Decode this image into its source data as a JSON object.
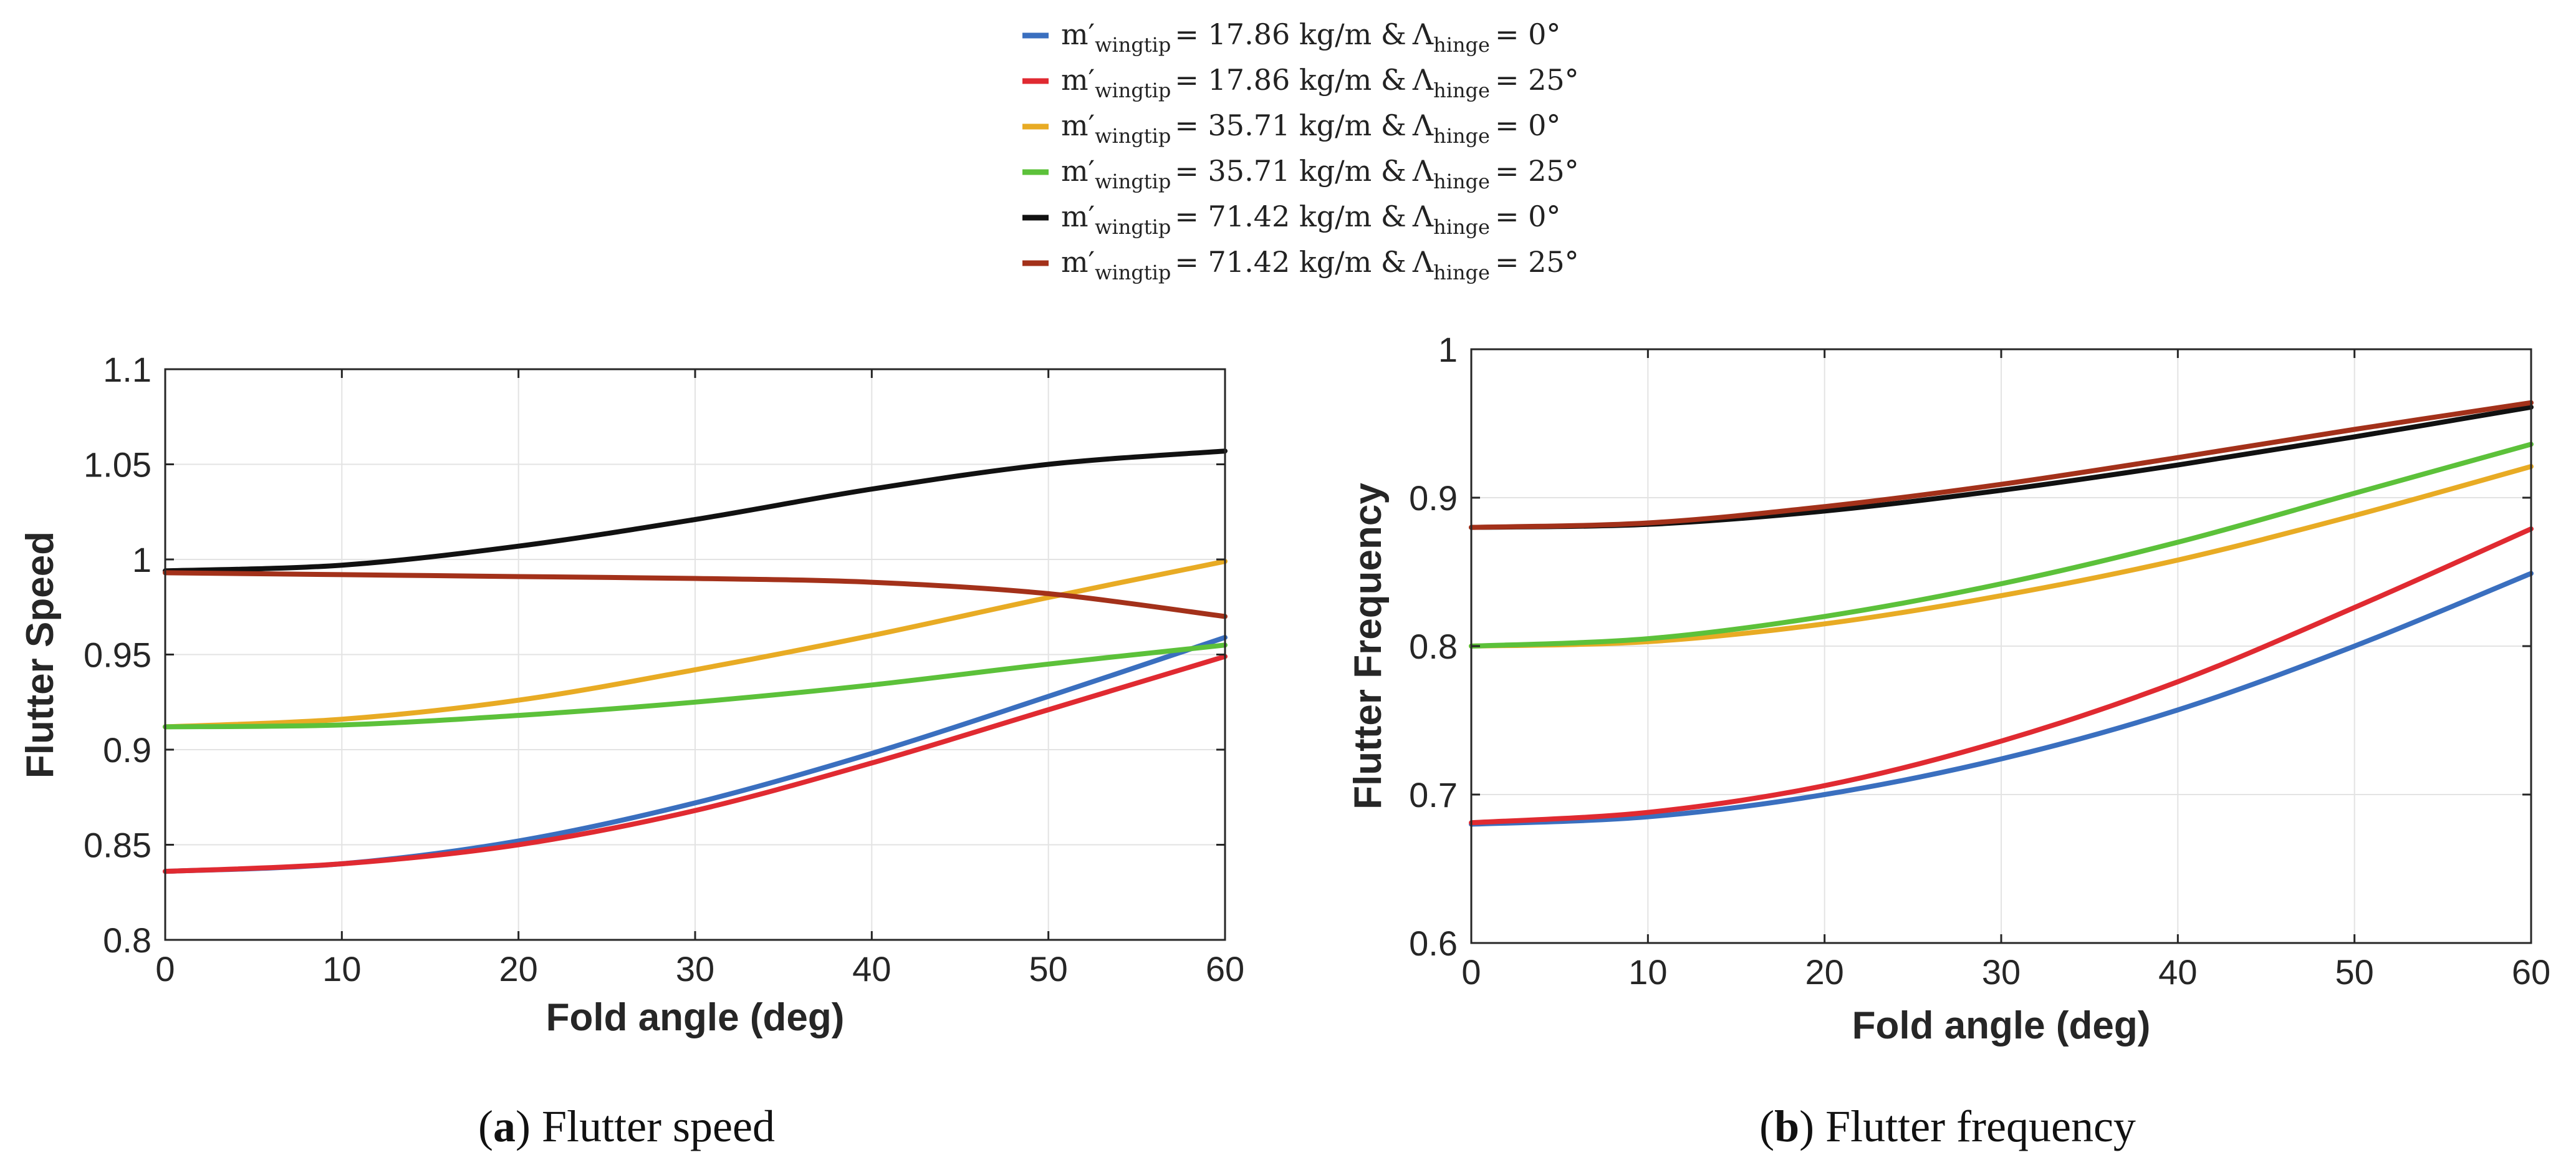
{
  "legend": {
    "entries": [
      {
        "m_symbol": "m′",
        "m_sub": "wingtip",
        "mass": "= 17.86 kg/m &",
        "lambda_symbol": "Λ",
        "lambda_sub": "hinge",
        "angle": "= 0°",
        "color": "#3a6fbf"
      },
      {
        "m_symbol": "m′",
        "m_sub": "wingtip",
        "mass": "= 17.86 kg/m &",
        "lambda_symbol": "Λ",
        "lambda_sub": "hinge",
        "angle": "= 25°",
        "color": "#e02a31"
      },
      {
        "m_symbol": "m′",
        "m_sub": "wingtip",
        "mass": "= 35.71 kg/m &",
        "lambda_symbol": "Λ",
        "lambda_sub": "hinge",
        "angle": "= 0°",
        "color": "#e8ab24"
      },
      {
        "m_symbol": "m′",
        "m_sub": "wingtip",
        "mass": "= 35.71 kg/m &",
        "lambda_symbol": "Λ",
        "lambda_sub": "hinge",
        "angle": "= 25°",
        "color": "#5cc13a"
      },
      {
        "m_symbol": "m′",
        "m_sub": "wingtip",
        "mass": "= 71.42 kg/m &",
        "lambda_symbol": "Λ",
        "lambda_sub": "hinge",
        "angle": "= 0°",
        "color": "#111111"
      },
      {
        "m_symbol": "m′",
        "m_sub": "wingtip",
        "mass": "= 71.42 kg/m &",
        "lambda_symbol": "Λ",
        "lambda_sub": "hinge",
        "angle": "= 25°",
        "color": "#a3311a"
      }
    ]
  },
  "captions": {
    "a": {
      "letter": "a",
      "text": " Flutter speed",
      "open": "(",
      "close": ")"
    },
    "b": {
      "letter": "b",
      "text": " Flutter frequency",
      "open": "(",
      "close": ")"
    }
  },
  "chart_data": [
    {
      "type": "line",
      "id": "a",
      "xlabel": "Fold angle (deg)",
      "ylabel": "Flutter Speed",
      "xlim": [
        0,
        60
      ],
      "ylim": [
        0.8,
        1.1
      ],
      "xticks": [
        0,
        10,
        20,
        30,
        40,
        50,
        60
      ],
      "xtick_labels": [
        "0",
        "10",
        "20",
        "30",
        "40",
        "50",
        "60"
      ],
      "yticks": [
        0.8,
        0.85,
        0.9,
        0.95,
        1.0,
        1.05,
        1.1
      ],
      "ytick_labels": [
        "0.8",
        "0.85",
        "0.9",
        "0.95",
        "1",
        "1.05",
        "1.1"
      ],
      "grid": true,
      "x": [
        0,
        10,
        20,
        30,
        40,
        50,
        60
      ],
      "series": [
        {
          "name": "17.86 kg/m, 0°",
          "values": [
            0.836,
            0.84,
            0.852,
            0.872,
            0.898,
            0.928,
            0.959
          ],
          "color": "#3a6fbf"
        },
        {
          "name": "17.86 kg/m, 25°",
          "values": [
            0.836,
            0.84,
            0.85,
            0.868,
            0.893,
            0.921,
            0.949
          ],
          "color": "#e02a31"
        },
        {
          "name": "35.71 kg/m, 0°",
          "values": [
            0.912,
            0.916,
            0.926,
            0.942,
            0.96,
            0.98,
            0.999
          ],
          "color": "#e8ab24"
        },
        {
          "name": "35.71 kg/m, 25°",
          "values": [
            0.912,
            0.913,
            0.918,
            0.925,
            0.934,
            0.945,
            0.955
          ],
          "color": "#5cc13a"
        },
        {
          "name": "71.42 kg/m, 0°",
          "values": [
            0.994,
            0.997,
            1.007,
            1.021,
            1.037,
            1.05,
            1.057
          ],
          "color": "#111111"
        },
        {
          "name": "71.42 kg/m, 25°",
          "values": [
            0.993,
            0.992,
            0.991,
            0.99,
            0.988,
            0.982,
            0.97
          ],
          "color": "#a3311a"
        }
      ]
    },
    {
      "type": "line",
      "id": "b",
      "xlabel": "Fold angle (deg)",
      "ylabel": "Flutter Frequency",
      "xlim": [
        0,
        60
      ],
      "ylim": [
        0.6,
        1.0
      ],
      "xticks": [
        0,
        10,
        20,
        30,
        40,
        50,
        60
      ],
      "xtick_labels": [
        "0",
        "10",
        "20",
        "30",
        "40",
        "50",
        "60"
      ],
      "yticks": [
        0.6,
        0.7,
        0.8,
        0.9,
        1.0
      ],
      "ytick_labels": [
        "0.6",
        "0.7",
        "0.8",
        "0.9",
        "1"
      ],
      "grid": true,
      "x": [
        0,
        10,
        20,
        30,
        40,
        50,
        60
      ],
      "series": [
        {
          "name": "17.86 kg/m, 0°",
          "values": [
            0.68,
            0.685,
            0.7,
            0.724,
            0.757,
            0.8,
            0.849
          ],
          "color": "#3a6fbf"
        },
        {
          "name": "17.86 kg/m, 25°",
          "values": [
            0.681,
            0.688,
            0.706,
            0.736,
            0.776,
            0.826,
            0.879
          ],
          "color": "#e02a31"
        },
        {
          "name": "35.71 kg/m, 0°",
          "values": [
            0.8,
            0.803,
            0.815,
            0.834,
            0.858,
            0.888,
            0.921
          ],
          "color": "#e8ab24"
        },
        {
          "name": "35.71 kg/m, 25°",
          "values": [
            0.8,
            0.805,
            0.82,
            0.842,
            0.87,
            0.903,
            0.936
          ],
          "color": "#5cc13a"
        },
        {
          "name": "71.42 kg/m, 0°",
          "values": [
            0.88,
            0.882,
            0.891,
            0.905,
            0.922,
            0.941,
            0.961
          ],
          "color": "#111111"
        },
        {
          "name": "71.42 kg/m, 25°",
          "values": [
            0.88,
            0.883,
            0.894,
            0.909,
            0.927,
            0.946,
            0.964
          ],
          "color": "#a3311a"
        }
      ]
    }
  ]
}
